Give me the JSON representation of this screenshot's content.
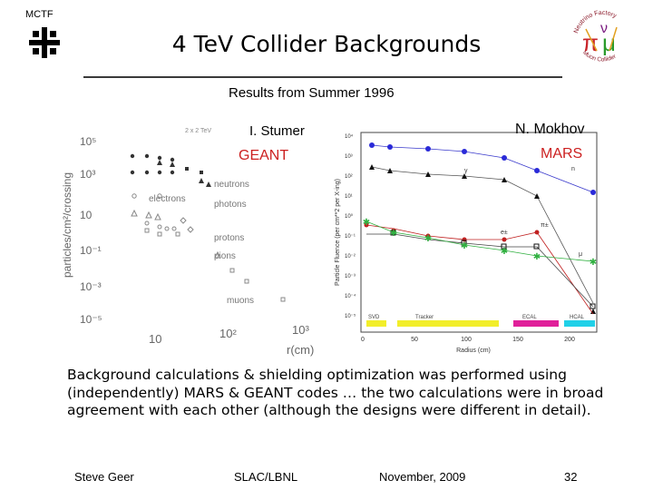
{
  "header": {
    "tag": "MCTF",
    "title": "4 TeV Collider Backgrounds",
    "subtitle": "Results from Summer 1996"
  },
  "logos": {
    "left": "fermilab-logo",
    "right": "neutrino-factory-muon-collider-logo",
    "right_text_top": "Neutrino Factory",
    "right_text_bottom": "Muon Collider",
    "color": "#8b1a2a"
  },
  "left_plot": {
    "author": "I. Stumer",
    "code": "GEANT",
    "corner_label": "2 x 2 TeV",
    "ylabel": "particles/cm²/crossing",
    "xlabel": "r(cm)",
    "yticks": [
      "10⁵",
      "10³",
      "10",
      "10⁻¹",
      "10⁻³",
      "10⁻⁵"
    ],
    "xticks": [
      "10",
      "10²",
      "10³"
    ],
    "legend": [
      "neutrons",
      "photons",
      "electrons",
      "protons",
      "pions",
      "muons"
    ]
  },
  "right_plot": {
    "author": "N. Mokhov",
    "code": "MARS",
    "ylabel": "Particle Fluence (per cm**2 per X-ing)",
    "xlabel": "Radius (cm)",
    "yticks": [
      "10⁴",
      "10³",
      "10²",
      "10¹",
      "10⁰",
      "10⁻¹",
      "10⁻²",
      "10⁻³",
      "10⁻⁴",
      "10⁻⁵"
    ],
    "xticks": [
      "0",
      "50",
      "100",
      "150",
      "200"
    ],
    "series_labels": [
      "n",
      "γ",
      "π±",
      "e±",
      "μ"
    ],
    "regions": [
      {
        "label": "SVD",
        "color": "#f2ee2a"
      },
      {
        "label": "Tracker",
        "color": "#f2ee2a"
      },
      {
        "label": "ECAL",
        "color": "#e0209a"
      },
      {
        "label": "HCAL",
        "color": "#20d0e8"
      }
    ]
  },
  "body": "Background calculations & shielding optimization was performed using (independently) MARS & GEANT codes … the two calculations were in broad agreement with each other (although the designs were different in detail).",
  "footer": {
    "author": "Steve Geer",
    "lab": "SLAC/LBNL",
    "date": "November, 2009",
    "page": "32"
  }
}
